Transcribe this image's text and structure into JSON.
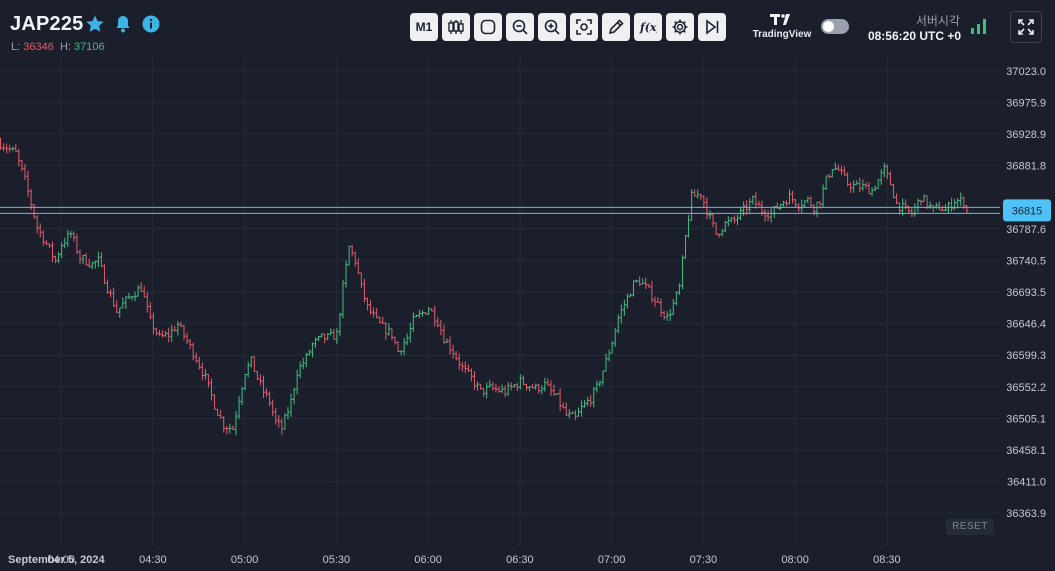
{
  "header": {
    "symbol": "JAP225",
    "low_label": "L:",
    "low_value": "36346",
    "high_label": "H:",
    "high_value": "37106",
    "toolbar": [
      {
        "name": "timeframe-button",
        "label": "M1"
      },
      {
        "name": "chart-type-button",
        "icon": "candles-icon"
      },
      {
        "name": "shape-button",
        "icon": "rounded-square-icon"
      },
      {
        "name": "zoom-out-button",
        "icon": "zoom-out-icon"
      },
      {
        "name": "zoom-in-button",
        "icon": "zoom-in-icon"
      },
      {
        "name": "screenshot-button",
        "icon": "camera-focus-icon"
      },
      {
        "name": "draw-button",
        "icon": "pencil-icon"
      },
      {
        "name": "indicators-button",
        "icon": "function-icon"
      },
      {
        "name": "settings-button",
        "icon": "gear-icon"
      },
      {
        "name": "scroll-to-end-button",
        "icon": "skip-forward-icon"
      }
    ],
    "brand": "TradingView",
    "server_time_label": "서버시각",
    "server_time": "08:56:20 UTC +0"
  },
  "colors": {
    "background": "#1b1f2c",
    "grid": "#262b39",
    "up": "#3fbf7f",
    "down": "#e45b6b",
    "price_line": "#4fc3f7",
    "axis_text": "#c5c9d3"
  },
  "reset_label": "RESET",
  "chart_data": {
    "type": "ohlc",
    "timeframe": "M1",
    "y_ticks": [
      37023.0,
      36975.9,
      36928.9,
      36881.8,
      36787.6,
      36740.5,
      36693.5,
      36646.4,
      36599.3,
      36552.2,
      36505.1,
      36458.1,
      36411.0,
      36363.9
    ],
    "y_ticks_text": [
      "37023.0",
      "36975.9",
      "36928.9",
      "36881.8",
      "36787.6",
      "36740.5",
      "36693.5",
      "36646.4",
      "36599.3",
      "36552.2",
      "36505.1",
      "36458.1",
      "36411.0",
      "36363.9"
    ],
    "ylim": [
      36315,
      37045
    ],
    "x_date_label": "September 5, 2024",
    "x_ticks": [
      "04:00",
      "04:30",
      "05:00",
      "05:30",
      "06:00",
      "06:30",
      "07:00",
      "07:30",
      "08:00",
      "08:30"
    ],
    "xlim": [
      "03:40",
      "09:07"
    ],
    "current_price": 36815,
    "current_price_text": "36815",
    "path": [
      [
        "03:40",
        36915
      ],
      [
        "03:45",
        36900
      ],
      [
        "03:48",
        36860
      ],
      [
        "03:52",
        36790
      ],
      [
        "03:55",
        36765
      ],
      [
        "03:58",
        36740
      ],
      [
        "04:00",
        36765
      ],
      [
        "04:03",
        36780
      ],
      [
        "04:06",
        36745
      ],
      [
        "04:10",
        36735
      ],
      [
        "04:12",
        36740
      ],
      [
        "04:15",
        36700
      ],
      [
        "04:18",
        36665
      ],
      [
        "04:20",
        36675
      ],
      [
        "04:23",
        36690
      ],
      [
        "04:26",
        36700
      ],
      [
        "04:29",
        36650
      ],
      [
        "04:32",
        36625
      ],
      [
        "04:35",
        36630
      ],
      [
        "04:38",
        36645
      ],
      [
        "04:41",
        36620
      ],
      [
        "04:44",
        36595
      ],
      [
        "04:47",
        36565
      ],
      [
        "04:50",
        36525
      ],
      [
        "04:53",
        36495
      ],
      [
        "04:56",
        36490
      ],
      [
        "04:58",
        36535
      ],
      [
        "05:00",
        36575
      ],
      [
        "05:02",
        36590
      ],
      [
        "05:04",
        36565
      ],
      [
        "05:06",
        36545
      ],
      [
        "05:08",
        36530
      ],
      [
        "05:10",
        36500
      ],
      [
        "05:12",
        36490
      ],
      [
        "05:15",
        36530
      ],
      [
        "05:17",
        36575
      ],
      [
        "05:20",
        36595
      ],
      [
        "05:22",
        36615
      ],
      [
        "05:25",
        36625
      ],
      [
        "05:27",
        36625
      ],
      [
        "05:30",
        36630
      ],
      [
        "05:32",
        36700
      ],
      [
        "05:34",
        36760
      ],
      [
        "05:36",
        36740
      ],
      [
        "05:38",
        36700
      ],
      [
        "05:40",
        36670
      ],
      [
        "05:43",
        36650
      ],
      [
        "05:45",
        36640
      ],
      [
        "05:48",
        36630
      ],
      [
        "05:50",
        36605
      ],
      [
        "05:53",
        36625
      ],
      [
        "05:55",
        36650
      ],
      [
        "06:00",
        36670
      ],
      [
        "06:03",
        36650
      ],
      [
        "06:05",
        36625
      ],
      [
        "06:08",
        36605
      ],
      [
        "06:11",
        36580
      ],
      [
        "06:14",
        36565
      ],
      [
        "06:17",
        36545
      ],
      [
        "06:20",
        36550
      ],
      [
        "06:25",
        36545
      ],
      [
        "06:30",
        36560
      ],
      [
        "06:35",
        36550
      ],
      [
        "06:38",
        36555
      ],
      [
        "06:40",
        36545
      ],
      [
        "06:42",
        36535
      ],
      [
        "06:45",
        36510
      ],
      [
        "06:48",
        36505
      ],
      [
        "06:50",
        36520
      ],
      [
        "06:53",
        36535
      ],
      [
        "06:55",
        36550
      ],
      [
        "06:58",
        36590
      ],
      [
        "07:00",
        36620
      ],
      [
        "07:02",
        36655
      ],
      [
        "07:05",
        36685
      ],
      [
        "07:07",
        36705
      ],
      [
        "07:09",
        36710
      ],
      [
        "07:12",
        36695
      ],
      [
        "07:15",
        36675
      ],
      [
        "07:18",
        36655
      ],
      [
        "07:20",
        36675
      ],
      [
        "07:22",
        36700
      ],
      [
        "07:24",
        36775
      ],
      [
        "07:26",
        36835
      ],
      [
        "07:29",
        36840
      ],
      [
        "07:31",
        36815
      ],
      [
        "07:34",
        36780
      ],
      [
        "07:37",
        36795
      ],
      [
        "07:40",
        36800
      ],
      [
        "07:43",
        36815
      ],
      [
        "07:46",
        36830
      ],
      [
        "07:49",
        36815
      ],
      [
        "07:52",
        36810
      ],
      [
        "07:55",
        36825
      ],
      [
        "07:58",
        36835
      ],
      [
        "08:01",
        36825
      ],
      [
        "08:04",
        36830
      ],
      [
        "08:06",
        36820
      ],
      [
        "08:08",
        36830
      ],
      [
        "08:10",
        36860
      ],
      [
        "08:12",
        36880
      ],
      [
        "08:14",
        36875
      ],
      [
        "08:17",
        36855
      ],
      [
        "08:20",
        36850
      ],
      [
        "08:22",
        36850
      ],
      [
        "08:25",
        36845
      ],
      [
        "08:27",
        36860
      ],
      [
        "08:29",
        36875
      ],
      [
        "08:31",
        36855
      ],
      [
        "08:33",
        36825
      ],
      [
        "08:36",
        36815
      ],
      [
        "08:38",
        36810
      ],
      [
        "08:41",
        36835
      ],
      [
        "08:43",
        36825
      ],
      [
        "08:45",
        36815
      ],
      [
        "08:47",
        36820
      ],
      [
        "08:49",
        36815
      ],
      [
        "08:52",
        36830
      ],
      [
        "08:55",
        36828
      ],
      [
        "08:56",
        36815
      ]
    ]
  }
}
